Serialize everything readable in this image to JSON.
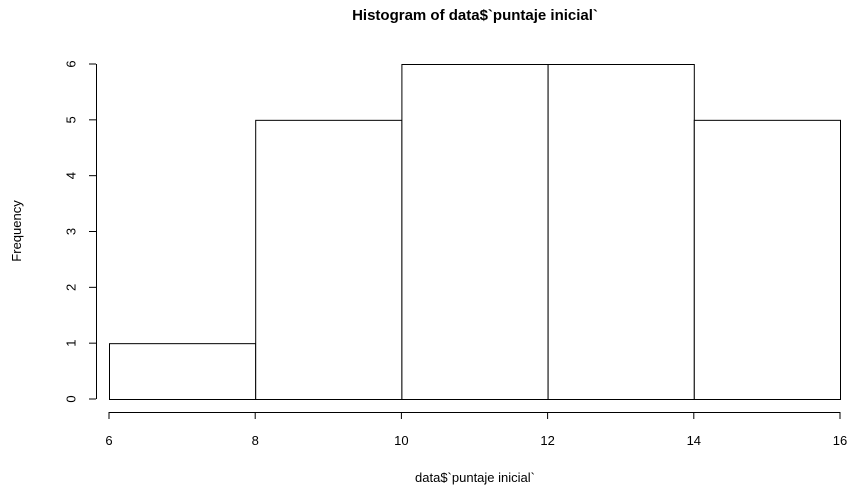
{
  "chart_data": {
    "type": "bar",
    "title": "Histogram of data$`puntaje inicial`",
    "xlabel": "data$`puntaje inicial`",
    "ylabel": "Frequency",
    "bins": [
      {
        "from": 6,
        "to": 8,
        "count": 1
      },
      {
        "from": 8,
        "to": 10,
        "count": 5
      },
      {
        "from": 10,
        "to": 12,
        "count": 6
      },
      {
        "from": 12,
        "to": 14,
        "count": 6
      },
      {
        "from": 14,
        "to": 16,
        "count": 5
      }
    ],
    "x_ticks": [
      "6",
      "8",
      "10",
      "12",
      "14",
      "16"
    ],
    "y_ticks": [
      "0",
      "1",
      "2",
      "3",
      "4",
      "5",
      "6"
    ],
    "xlim": [
      6,
      16
    ],
    "ylim": [
      0,
      6
    ],
    "grid": false,
    "legend": "none",
    "bar_fill": "#ffffff",
    "bar_stroke": "#000000"
  }
}
